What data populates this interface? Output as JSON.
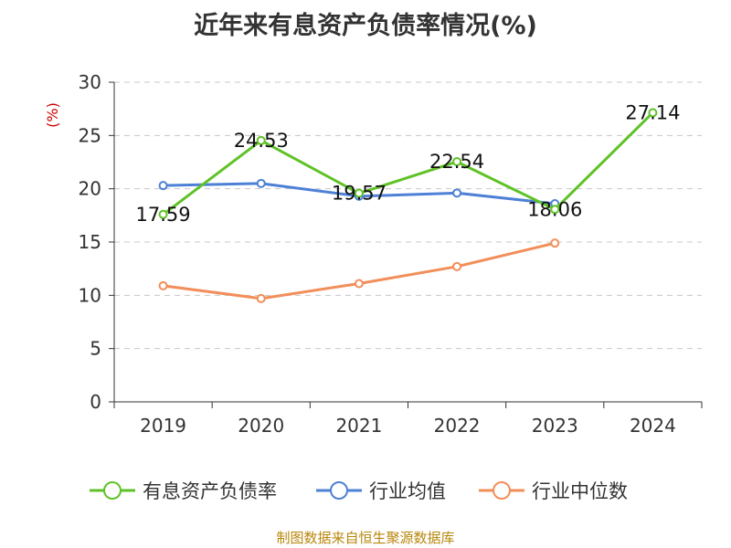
{
  "title": "近年来有息资产负债率情况(%)",
  "source": "制图数据来自恒生聚源数据库",
  "chart_data": {
    "type": "line",
    "title": "近年来有息资产负债率情况(%)",
    "ylabel": "(%)",
    "xlabel": "",
    "categories": [
      "2019",
      "2020",
      "2021",
      "2022",
      "2023",
      "2024"
    ],
    "ylim": [
      0,
      30
    ],
    "yticks": [
      0,
      5,
      10,
      15,
      20,
      25,
      30
    ],
    "grid": "horizontal dashed",
    "legend_position": "bottom",
    "series": [
      {
        "name": "有息资产负债率",
        "color": "#5fc227",
        "values": [
          17.59,
          24.53,
          19.57,
          22.54,
          18.06,
          27.14
        ],
        "data_labels": [
          "17.59",
          "24.53",
          "19.57",
          "22.54",
          "18.06",
          "27.14"
        ]
      },
      {
        "name": "行业均值",
        "color": "#4e80d6",
        "values": [
          20.3,
          20.5,
          19.3,
          19.6,
          18.6,
          null
        ]
      },
      {
        "name": "行业中位数",
        "color": "#f28e5a",
        "values": [
          10.9,
          9.7,
          11.1,
          12.7,
          14.9,
          null
        ]
      }
    ]
  }
}
